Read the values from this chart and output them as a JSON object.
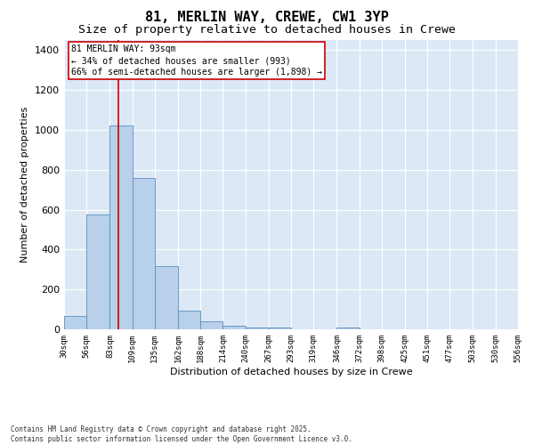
{
  "title1": "81, MERLIN WAY, CREWE, CW1 3YP",
  "title2": "Size of property relative to detached houses in Crewe",
  "xlabel": "Distribution of detached houses by size in Crewe",
  "ylabel": "Number of detached properties",
  "bin_edges": [
    30,
    56,
    83,
    109,
    135,
    162,
    188,
    214,
    240,
    267,
    293,
    319,
    346,
    372,
    398,
    425,
    451,
    477,
    503,
    530,
    556
  ],
  "bar_heights": [
    65,
    575,
    1020,
    760,
    315,
    95,
    40,
    20,
    10,
    10,
    0,
    0,
    10,
    0,
    0,
    0,
    0,
    0,
    0,
    0
  ],
  "bar_color": "#b8d0ea",
  "bar_edge_color": "#5b8fbe",
  "property_size": 93,
  "vline_color": "#cc0000",
  "annotation_text": "81 MERLIN WAY: 93sqm\n← 34% of detached houses are smaller (993)\n66% of semi-detached houses are larger (1,898) →",
  "annotation_box_color": "#ffffff",
  "annotation_box_edge": "#cc0000",
  "ylim": [
    0,
    1450
  ],
  "yticks": [
    0,
    200,
    400,
    600,
    800,
    1000,
    1200,
    1400
  ],
  "grid_color": "#ffffff",
  "bg_color": "#dce8f5",
  "footer": "Contains HM Land Registry data © Crown copyright and database right 2025.\nContains public sector information licensed under the Open Government Licence v3.0.",
  "title_fontsize": 11,
  "subtitle_fontsize": 9.5,
  "tick_label_fontsize": 6.5,
  "ylabel_fontsize": 8,
  "xlabel_fontsize": 8,
  "annot_fontsize": 7,
  "footer_fontsize": 5.5
}
